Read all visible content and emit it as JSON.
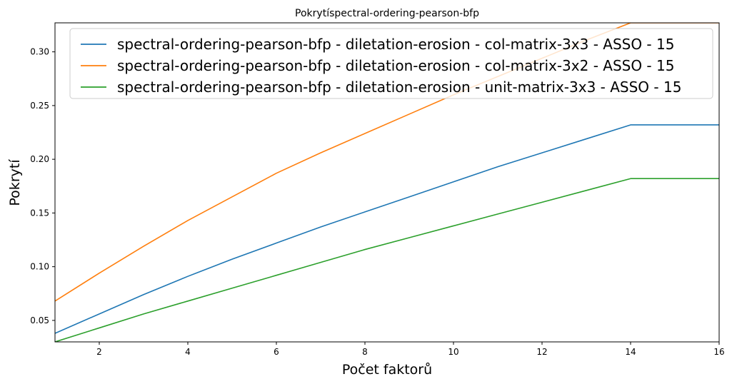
{
  "chart_data": {
    "type": "line",
    "title": "Pokrytíspectral-ordering-pearson-bfp",
    "xlabel": "Počet faktorů",
    "ylabel": "Pokrytí",
    "xlim": [
      1,
      16
    ],
    "ylim": [
      0.03,
      0.327
    ],
    "xticks": [
      2,
      4,
      6,
      8,
      10,
      12,
      14,
      16
    ],
    "yticks": [
      0.05,
      0.1,
      0.15,
      0.2,
      0.25,
      0.3
    ],
    "grid": false,
    "legend_position": "top-right",
    "series": [
      {
        "name": "spectral-ordering-pearson-bfp - diletation-erosion - col-matrix-3x3 - ASSO - 15",
        "color": "#1f77b4",
        "x": [
          1,
          2,
          3,
          4,
          5,
          6,
          7,
          8,
          9,
          10,
          11,
          12,
          13,
          14,
          15,
          16
        ],
        "y": [
          0.038,
          0.056,
          0.074,
          0.091,
          0.107,
          0.122,
          0.137,
          0.151,
          0.165,
          0.179,
          0.193,
          0.206,
          0.219,
          0.232,
          0.232,
          0.232
        ]
      },
      {
        "name": "spectral-ordering-pearson-bfp - diletation-erosion - col-matrix-3x2 - ASSO - 15",
        "color": "#ff7f0e",
        "x": [
          1,
          2,
          3,
          4,
          5,
          6,
          7,
          8,
          9,
          10,
          11,
          12,
          13,
          14,
          15,
          16
        ],
        "y": [
          0.068,
          0.094,
          0.119,
          0.143,
          0.165,
          0.187,
          0.206,
          0.224,
          0.242,
          0.26,
          0.277,
          0.294,
          0.311,
          0.327,
          0.327,
          0.327
        ]
      },
      {
        "name": "spectral-ordering-pearson-bfp - diletation-erosion - unit-matrix-3x3 - ASSO - 15",
        "color": "#2ca02c",
        "x": [
          1,
          2,
          3,
          4,
          5,
          6,
          7,
          8,
          9,
          10,
          11,
          12,
          13,
          14,
          15,
          16
        ],
        "y": [
          0.03,
          0.043,
          0.056,
          0.068,
          0.08,
          0.092,
          0.104,
          0.116,
          0.127,
          0.138,
          0.149,
          0.16,
          0.171,
          0.182,
          0.182,
          0.182
        ]
      }
    ]
  }
}
